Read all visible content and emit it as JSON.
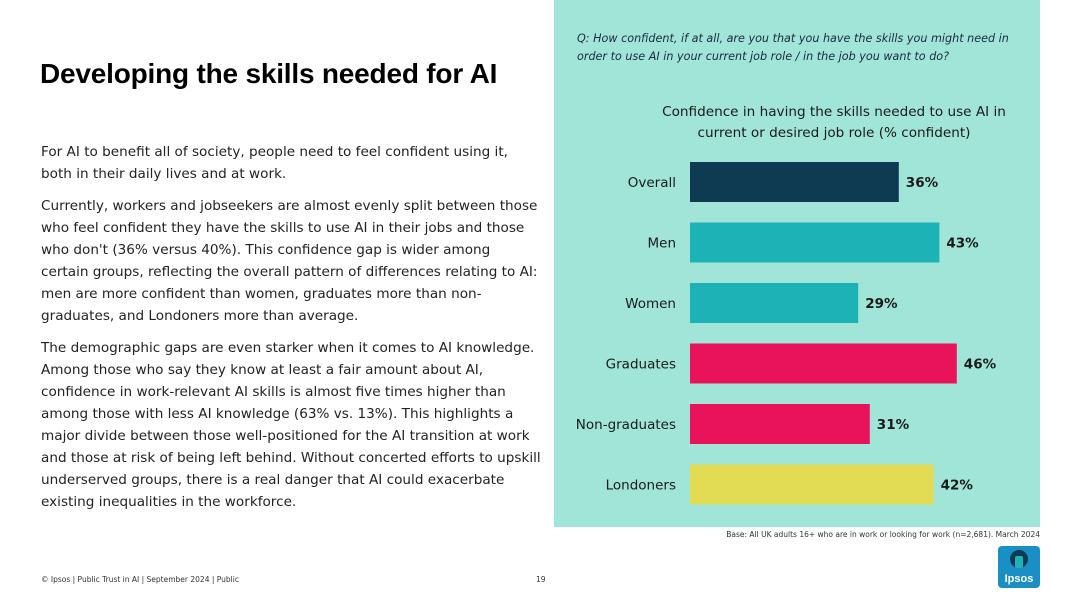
{
  "title": "Developing the skills needed for AI",
  "paragraphs": [
    "For AI to benefit all of society, people need to feel confident using it, both in their daily lives and at work.",
    "Currently, workers and jobseekers are almost evenly split between those who feel confident they have the skills to use AI in their jobs and those who don't (36% versus 40%). This confidence gap is wider among certain groups, reflecting the overall pattern of differences relating to AI: men are more confident than women, graduates more than non-graduates, and Londoners more than average.",
    "The demographic gaps are even starker when it comes to AI knowledge. Among those who say they know at least a fair amount about AI, confidence in work-relevant AI skills is almost five times higher than among those with less AI knowledge (63% vs. 13%). This highlights a major divide between those well-positioned for the AI transition at work and those at risk of being left behind. Without concerted efforts to upskill underserved groups, there is a real danger that AI could exacerbate existing inequalities in the workforce."
  ],
  "question": "Q: How confident, if at all, are you that you have the skills you might need in order to use AI in your current job role / in the job you want to do?",
  "base_note": "Base: All UK adults 16+ who are in work or looking for work (n=2,681). March 2024",
  "footer": "© Ipsos | Public Trust in AI | September 2024 | Public",
  "page_number": "19",
  "logo_text": "Ipsos",
  "colors": {
    "panel_bg": "#a1e4d8",
    "overall": "#0f3b52",
    "gender": "#1db2b6",
    "education": "#e8135a",
    "region": "#e2dc55"
  },
  "chart_data": {
    "type": "bar",
    "orientation": "horizontal",
    "title": "Confidence in having the skills needed to use AI in current or desired job role (% confident)",
    "categories": [
      "Overall",
      "Men",
      "Women",
      "Graduates",
      "Non-graduates",
      "Londoners"
    ],
    "values": [
      36,
      43,
      29,
      46,
      31,
      42
    ],
    "value_suffix": "%",
    "bar_colors": [
      "#0f3b52",
      "#1db2b6",
      "#1db2b6",
      "#e8135a",
      "#e8135a",
      "#e2dc55"
    ],
    "xlim": [
      0,
      100
    ],
    "grid": false,
    "legend": "none"
  }
}
